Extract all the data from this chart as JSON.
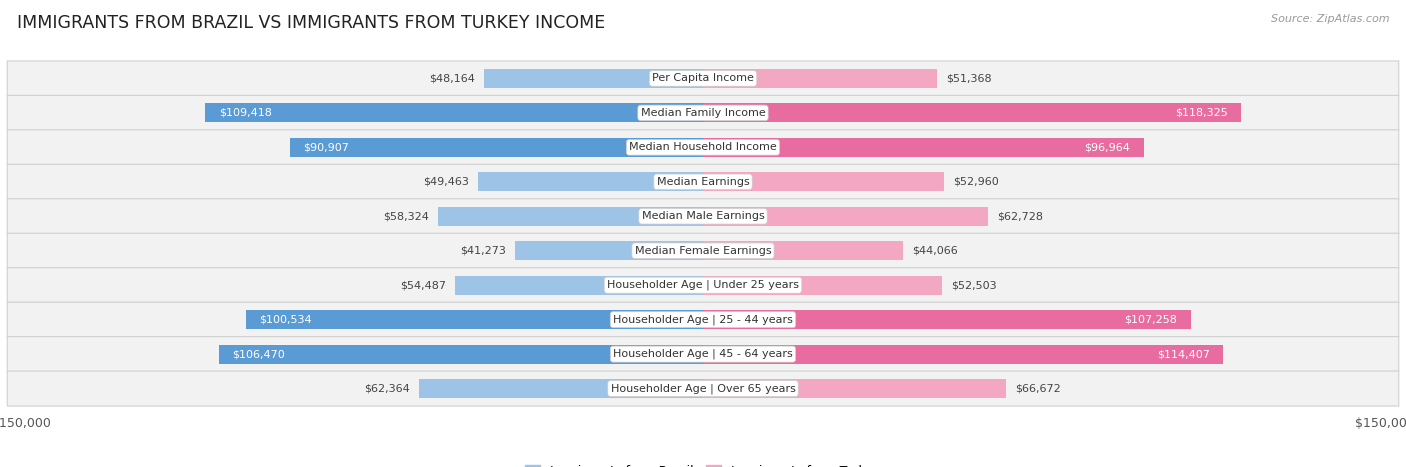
{
  "title": "IMMIGRANTS FROM BRAZIL VS IMMIGRANTS FROM TURKEY INCOME",
  "source": "Source: ZipAtlas.com",
  "categories": [
    "Per Capita Income",
    "Median Family Income",
    "Median Household Income",
    "Median Earnings",
    "Median Male Earnings",
    "Median Female Earnings",
    "Householder Age | Under 25 years",
    "Householder Age | 25 - 44 years",
    "Householder Age | 45 - 64 years",
    "Householder Age | Over 65 years"
  ],
  "brazil_values": [
    48164,
    109418,
    90907,
    49463,
    58324,
    41273,
    54487,
    100534,
    106470,
    62364
  ],
  "turkey_values": [
    51368,
    118325,
    96964,
    52960,
    62728,
    44066,
    52503,
    107258,
    114407,
    66672
  ],
  "brazil_labels": [
    "$48,164",
    "$109,418",
    "$90,907",
    "$49,463",
    "$58,324",
    "$41,273",
    "$54,487",
    "$100,534",
    "$106,470",
    "$62,364"
  ],
  "turkey_labels": [
    "$51,368",
    "$118,325",
    "$96,964",
    "$52,960",
    "$62,728",
    "$44,066",
    "$52,503",
    "$107,258",
    "$114,407",
    "$66,672"
  ],
  "brazil_color_dark": "#5b9bd5",
  "brazil_color_light": "#9dc3e6",
  "turkey_color_dark": "#e96ca0",
  "turkey_color_light": "#f4a7c3",
  "inside_threshold": 70000,
  "max_value": 150000,
  "bar_height": 0.55,
  "background_color": "#ffffff",
  "row_bg_color": "#f2f2f2",
  "row_border_color": "#d0d0d0",
  "legend_brazil": "Immigrants from Brazil",
  "legend_turkey": "Immigrants from Turkey",
  "title_fontsize": 12.5,
  "source_fontsize": 8,
  "axis_label_fontsize": 9,
  "bar_label_fontsize": 8,
  "category_fontsize": 8
}
